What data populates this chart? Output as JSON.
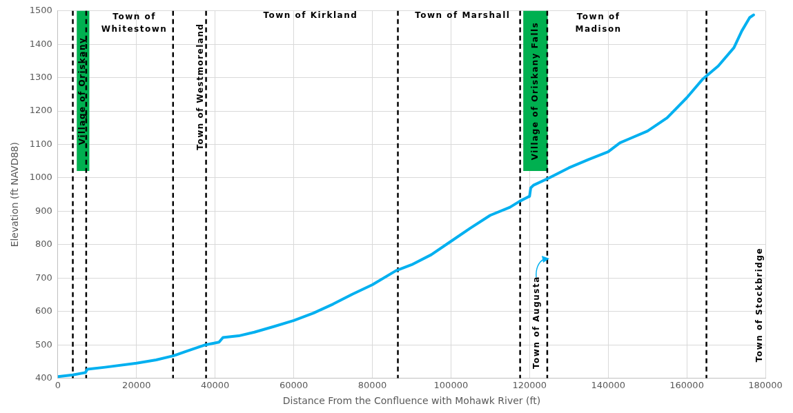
{
  "chart_data": {
    "type": "line",
    "xlabel": "Distance From the Confluence with Mohawk River (ft)",
    "ylabel": "Elevation (ft NAVD88)",
    "x": [
      0,
      3800,
      7000,
      7500,
      12000,
      20000,
      25000,
      29300,
      33000,
      37500,
      41000,
      42000,
      46000,
      50000,
      55000,
      60000,
      65000,
      70000,
      75000,
      80000,
      86000,
      90000,
      95000,
      100000,
      105000,
      110000,
      115000,
      117500,
      120000,
      120300,
      121000,
      125000,
      130000,
      135000,
      140000,
      143000,
      145000,
      150000,
      155000,
      160000,
      164000,
      168000,
      172000,
      174000,
      176000,
      177000
    ],
    "series": [
      {
        "color": "#00b0f0",
        "values": [
          405,
          410,
          417,
          427,
          433,
          445,
          455,
          467,
          482,
          500,
          508,
          522,
          527,
          538,
          555,
          573,
          595,
          622,
          652,
          680,
          722,
          740,
          770,
          810,
          850,
          888,
          912,
          930,
          945,
          970,
          978,
          1000,
          1030,
          1055,
          1078,
          1105,
          1115,
          1140,
          1180,
          1240,
          1295,
          1335,
          1390,
          1440,
          1480,
          1488
        ]
      }
    ],
    "xlim": [
      0,
      180000
    ],
    "xticks": [
      0,
      20000,
      40000,
      60000,
      80000,
      100000,
      120000,
      140000,
      160000,
      180000
    ],
    "ylim": [
      400,
      1500
    ],
    "yticks": [
      400,
      500,
      600,
      700,
      800,
      900,
      1000,
      1100,
      1200,
      1300,
      1400,
      1500
    ],
    "grid": true,
    "legend": false,
    "marker": "none",
    "line_style": "solid",
    "ref_lines": [
      {
        "axis": "x",
        "value": 3800,
        "color": "#000000",
        "line_style": "dashed"
      },
      {
        "axis": "x",
        "value": 7200,
        "color": "#000000",
        "line_style": "dashed"
      },
      {
        "axis": "x",
        "value": 29300,
        "color": "#000000",
        "line_style": "dashed"
      },
      {
        "axis": "x",
        "value": 37700,
        "color": "#000000",
        "line_style": "dashed"
      },
      {
        "axis": "x",
        "value": 86500,
        "color": "#000000",
        "line_style": "dashed"
      },
      {
        "axis": "x",
        "value": 117600,
        "color": "#000000",
        "line_style": "dashed"
      },
      {
        "axis": "x",
        "value": 124500,
        "color": "#000000",
        "line_style": "dashed"
      },
      {
        "axis": "x",
        "value": 165000,
        "color": "#000000",
        "line_style": "dashed"
      }
    ],
    "bands": [
      {
        "axis": "x",
        "from": 4800,
        "to": 8000,
        "label": "Village of Oriskany",
        "color": "#00b050"
      },
      {
        "axis": "x",
        "from": 118400,
        "to": 124600,
        "label": "Village of Oriskany Falls",
        "color": "#00b050"
      }
    ],
    "annotations": [
      "Town of\nWhitestown",
      "Town of Westmoreland",
      "Town of Kirkland",
      "Town of Marshall",
      "Town of Augusta",
      "Town of\nMadison",
      "Town of Stockbridge"
    ]
  }
}
